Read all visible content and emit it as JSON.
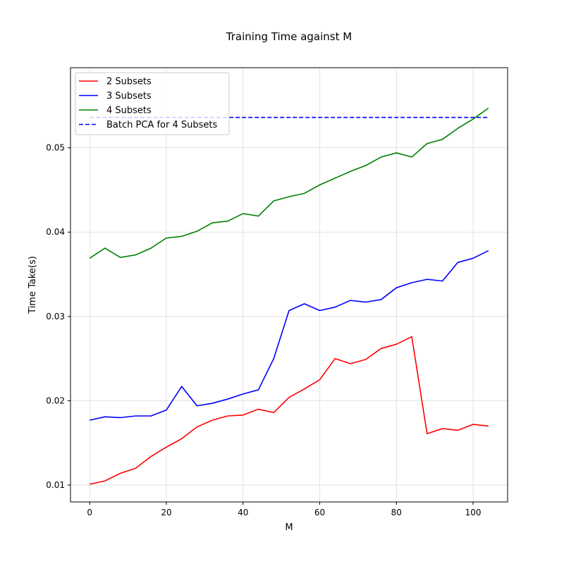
{
  "chart_data": {
    "type": "line",
    "title": "Training Time against M",
    "xlabel": "M",
    "ylabel": "Time Take(s)",
    "xlim": [
      -5,
      109
    ],
    "ylim": [
      0.008,
      0.0595
    ],
    "xticks": [
      0,
      20,
      40,
      60,
      80,
      100
    ],
    "yticks": [
      0.01,
      0.02,
      0.03,
      0.04,
      0.05
    ],
    "xtick_labels": [
      "0",
      "20",
      "40",
      "60",
      "80",
      "100"
    ],
    "ytick_labels": [
      "0.01",
      "0.02",
      "0.03",
      "0.04",
      "0.05"
    ],
    "grid": true,
    "legend": "upper-left",
    "x": [
      0,
      4,
      8,
      12,
      16,
      20,
      24,
      28,
      32,
      36,
      40,
      44,
      48,
      52,
      56,
      60,
      64,
      68,
      72,
      76,
      80,
      84,
      88,
      92,
      96,
      100,
      104
    ],
    "series": [
      {
        "name": "2 Subsets",
        "color": "#ff0000",
        "style": "solid",
        "values": [
          0.0101,
          0.0105,
          0.0114,
          0.012,
          0.0134,
          0.0145,
          0.0155,
          0.0169,
          0.0177,
          0.0182,
          0.0183,
          0.019,
          0.0186,
          0.0204,
          0.0214,
          0.0225,
          0.025,
          0.0244,
          0.0249,
          0.0262,
          0.0267,
          0.0276,
          0.0161,
          0.0167,
          0.0165,
          0.0172,
          0.017
        ]
      },
      {
        "name": "3 Subsets",
        "color": "#0000ff",
        "style": "solid",
        "values": [
          0.0177,
          0.0181,
          0.018,
          0.0182,
          0.0182,
          0.0189,
          0.0217,
          0.0194,
          0.0197,
          0.0202,
          0.0208,
          0.0213,
          0.025,
          0.0307,
          0.0315,
          0.0307,
          0.0311,
          0.0319,
          0.0317,
          0.032,
          0.0334,
          0.034,
          0.0344,
          0.0342,
          0.0364,
          0.0369,
          0.0378
        ]
      },
      {
        "name": "4 Subsets",
        "color": "#008000",
        "style": "solid",
        "values": [
          0.0369,
          0.0381,
          0.037,
          0.0373,
          0.0381,
          0.0393,
          0.0395,
          0.0401,
          0.0411,
          0.0413,
          0.0422,
          0.0419,
          0.0437,
          0.0442,
          0.0446,
          0.0456,
          0.0464,
          0.0472,
          0.0479,
          0.0489,
          0.0494,
          0.0489,
          0.0505,
          0.051,
          0.0523,
          0.0534,
          0.0547
        ]
      },
      {
        "name": "Batch PCA for 4 Subsets",
        "color": "#0000ff",
        "style": "dashed",
        "values": [
          0.0536,
          0.0536,
          0.0536,
          0.0536,
          0.0536,
          0.0536,
          0.0536,
          0.0536,
          0.0536,
          0.0536,
          0.0536,
          0.0536,
          0.0536,
          0.0536,
          0.0536,
          0.0536,
          0.0536,
          0.0536,
          0.0536,
          0.0536,
          0.0536,
          0.0536,
          0.0536,
          0.0536,
          0.0536,
          0.0536,
          0.0536
        ]
      }
    ]
  }
}
